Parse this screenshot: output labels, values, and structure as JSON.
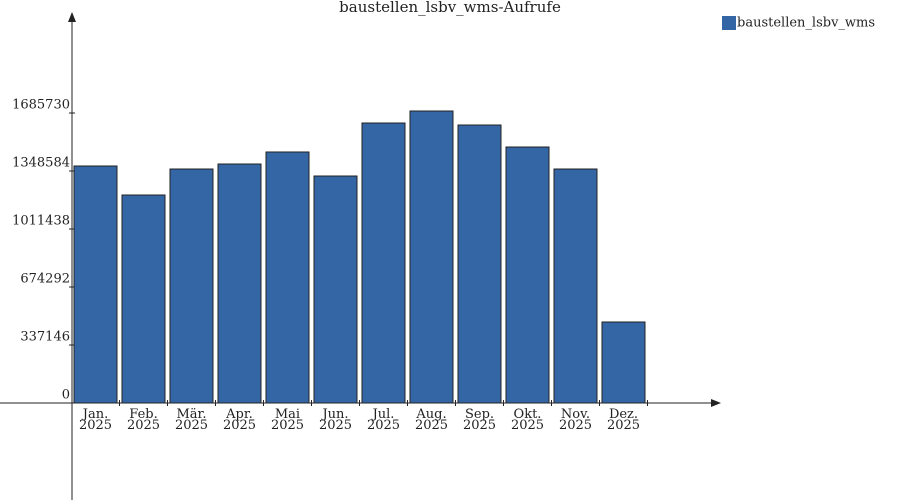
{
  "chart_data": {
    "type": "bar",
    "title": "baustellen_lsbv_wms-Aufrufe",
    "categories": [
      "Jan. 2025",
      "Feb. 2025",
      "Mär. 2025",
      "Apr. 2025",
      "Mai 2025",
      "Jun. 2025",
      "Jul. 2025",
      "Aug. 2025",
      "Sep. 2025",
      "Okt. 2025",
      "Nov. 2025",
      "Dez. 2025"
    ],
    "series": [
      {
        "name": "baustellen_lsbv_wms",
        "color": "#3465a4",
        "values": [
          1377700,
          1209100,
          1360200,
          1389300,
          1459100,
          1319500,
          1627600,
          1697400,
          1616000,
          1488100,
          1360200,
          470900
        ]
      }
    ],
    "ylim": [
      0,
      2238000
    ],
    "yticks": [
      0,
      337146,
      674292,
      1011438,
      1348584,
      1685730
    ],
    "legend": "top-right"
  }
}
